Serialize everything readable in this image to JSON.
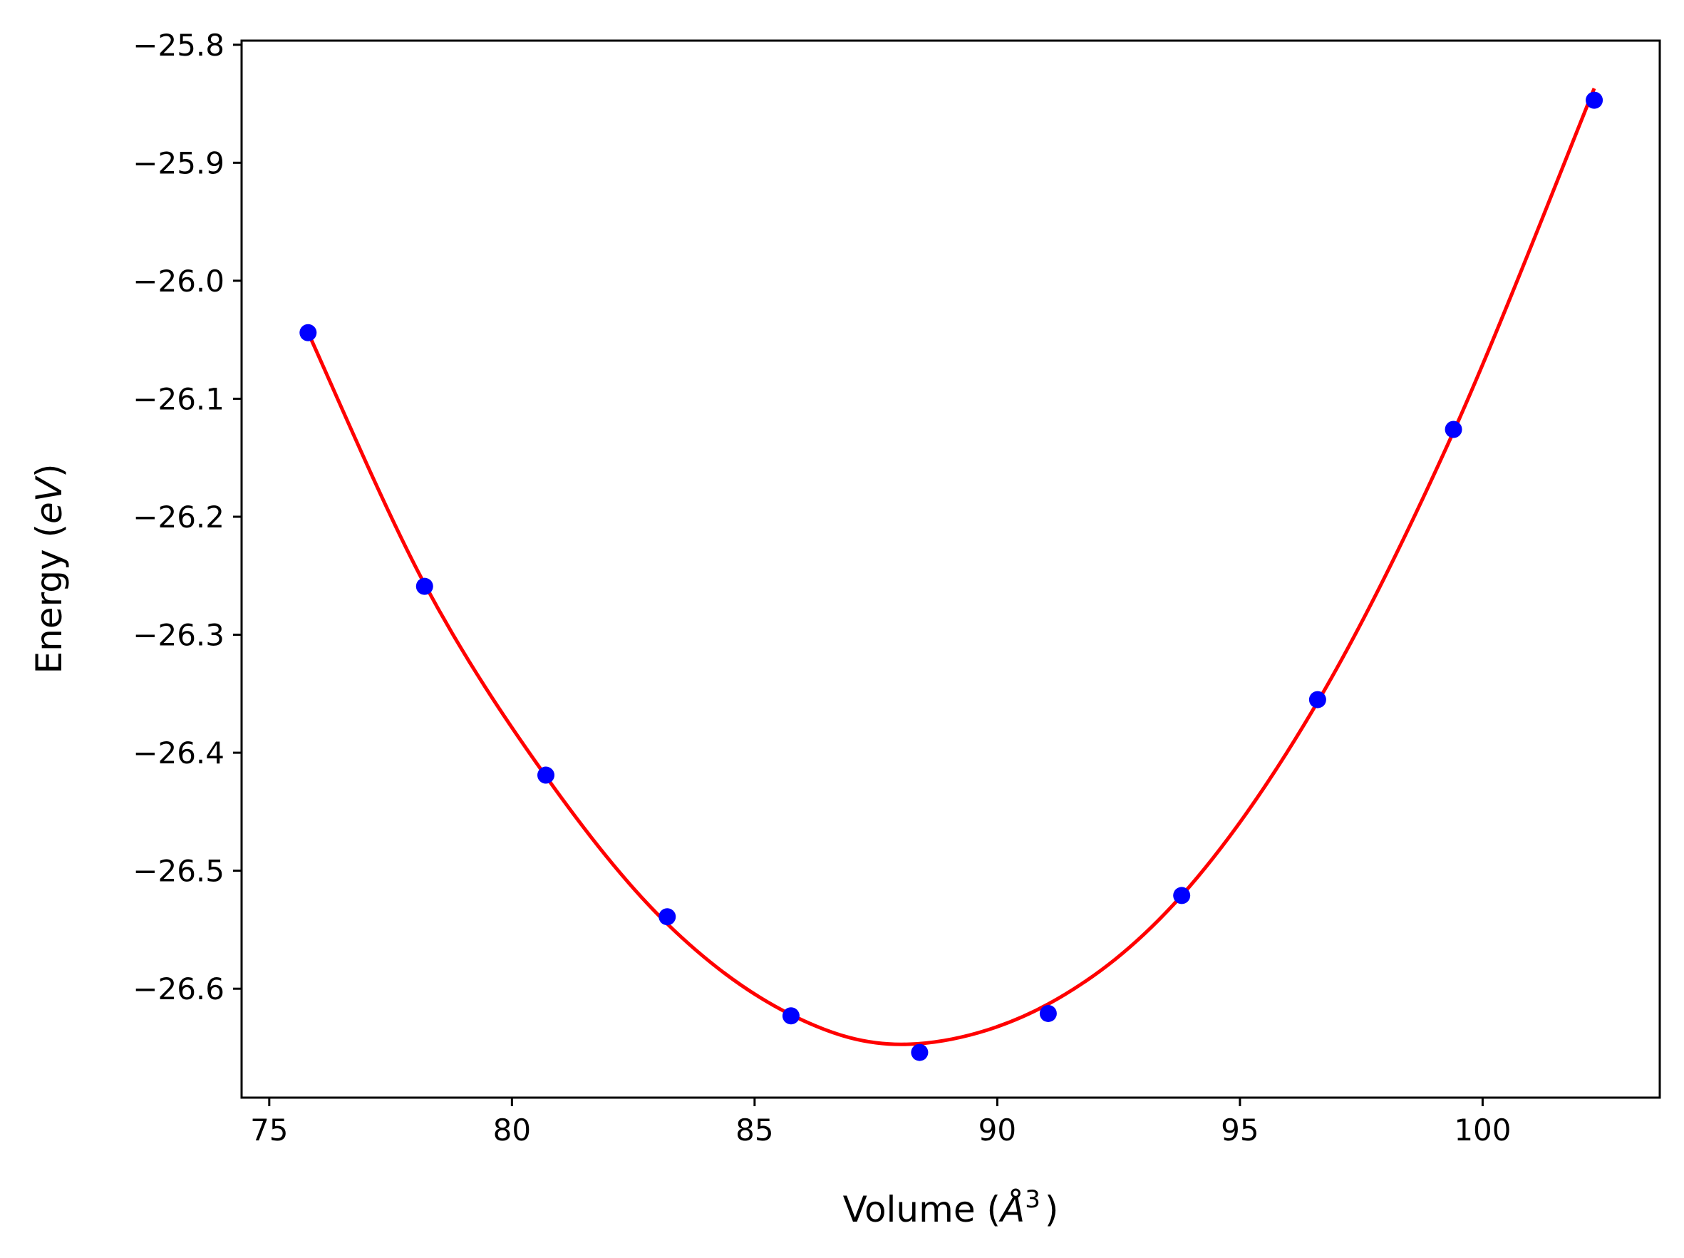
{
  "chart_data": {
    "type": "scatter",
    "xlabel": "Volume (",
    "xlabel_symbol": "Å",
    "xlabel_sup": "3",
    "xlabel_close": ")",
    "ylabel": "Energy (",
    "ylabel_unit": "eV",
    "ylabel_close": ")",
    "xlim": [
      74.43,
      103.65
    ],
    "ylim": [
      -26.6923,
      -25.7965
    ],
    "xticks": [
      75,
      80,
      85,
      90,
      95,
      100
    ],
    "xtick_labels": [
      "75",
      "80",
      "85",
      "90",
      "95",
      "100"
    ],
    "yticks": [
      -25.8,
      -25.9,
      -26.0,
      -26.1,
      -26.2,
      -26.3,
      -26.4,
      -26.5,
      -26.6
    ],
    "ytick_labels": [
      "−25.8",
      "−25.9",
      "−26.0",
      "−26.1",
      "−26.2",
      "−26.3",
      "−26.4",
      "−26.5",
      "−26.6"
    ],
    "grid": false,
    "legend": false,
    "series": [
      {
        "kind": "points",
        "color": "#0000ff",
        "x": [
          75.8,
          78.2,
          80.7,
          83.2,
          85.75,
          88.4,
          91.05,
          93.8,
          96.6,
          99.4,
          102.3
        ],
        "y": [
          -26.044,
          -26.259,
          -26.419,
          -26.539,
          -26.623,
          -26.654,
          -26.621,
          -26.521,
          -26.355,
          -26.126,
          -25.847
        ]
      },
      {
        "kind": "fit-line",
        "color": "#ff0000",
        "x": [
          75.8,
          78.2,
          80.7,
          83.2,
          85.75,
          88.2,
          91.05,
          93.8,
          96.6,
          99.4,
          102.3
        ],
        "y": [
          -26.044,
          -26.257,
          -26.42,
          -26.545,
          -26.622,
          -26.647,
          -26.613,
          -26.521,
          -26.357,
          -26.128,
          -25.837
        ]
      }
    ]
  }
}
